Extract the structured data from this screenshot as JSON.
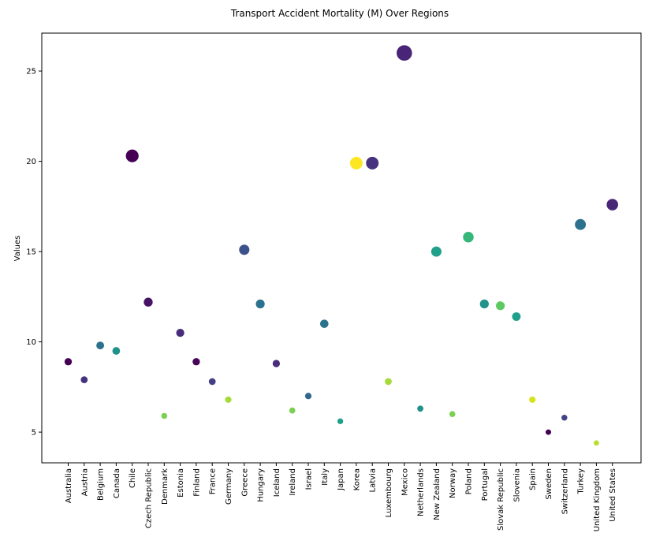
{
  "chart_data": {
    "type": "scatter",
    "title": "Transport Accident Mortality (M) Over Regions",
    "xlabel": "",
    "ylabel": "Values",
    "ylim": [
      3.3,
      27.1
    ],
    "yticks": [
      5,
      10,
      15,
      20,
      25
    ],
    "grid": false,
    "categories": [
      "Australia",
      "Austria",
      "Belgium",
      "Canada",
      "Chile",
      "Czech Republic",
      "Denmark",
      "Estonia",
      "Finland",
      "France",
      "Germany",
      "Greece",
      "Hungary",
      "Iceland",
      "Ireland",
      "Israel",
      "Italy",
      "Japan",
      "Korea",
      "Latvia",
      "Luxembourg",
      "Mexico",
      "Netherlands",
      "New Zealand",
      "Norway",
      "Poland",
      "Portugal",
      "Slovak Republic",
      "Slovenia",
      "Spain",
      "Sweden",
      "Switzerland",
      "Turkey",
      "United Kingdom",
      "United States"
    ],
    "values": [
      8.9,
      7.9,
      9.8,
      9.5,
      20.3,
      12.2,
      5.9,
      10.5,
      8.9,
      7.8,
      6.8,
      15.1,
      12.1,
      8.8,
      6.2,
      7.0,
      11.0,
      5.6,
      19.9,
      19.9,
      7.8,
      26.0,
      6.3,
      15.0,
      6.0,
      15.8,
      12.1,
      12.0,
      11.4,
      6.8,
      5.0,
      5.8,
      16.5,
      4.4,
      17.6
    ],
    "colors": [
      "#440154",
      "#46327e",
      "#2c728e",
      "#21918c",
      "#440154",
      "#471365",
      "#7ad151",
      "#472d7b",
      "#450457",
      "#433e85",
      "#a5db36",
      "#3b528b",
      "#2c728e",
      "#472d7b",
      "#7ad151",
      "#31688e",
      "#2c728e",
      "#1fa088",
      "#fde725",
      "#46327e",
      "#a5db36",
      "#482576",
      "#21918c",
      "#1fa088",
      "#7ad151",
      "#35b779",
      "#21918c",
      "#5ec962",
      "#1fa088",
      "#d8e219",
      "#440154",
      "#414487",
      "#2c728e",
      "#b5de2b",
      "#482576"
    ]
  }
}
